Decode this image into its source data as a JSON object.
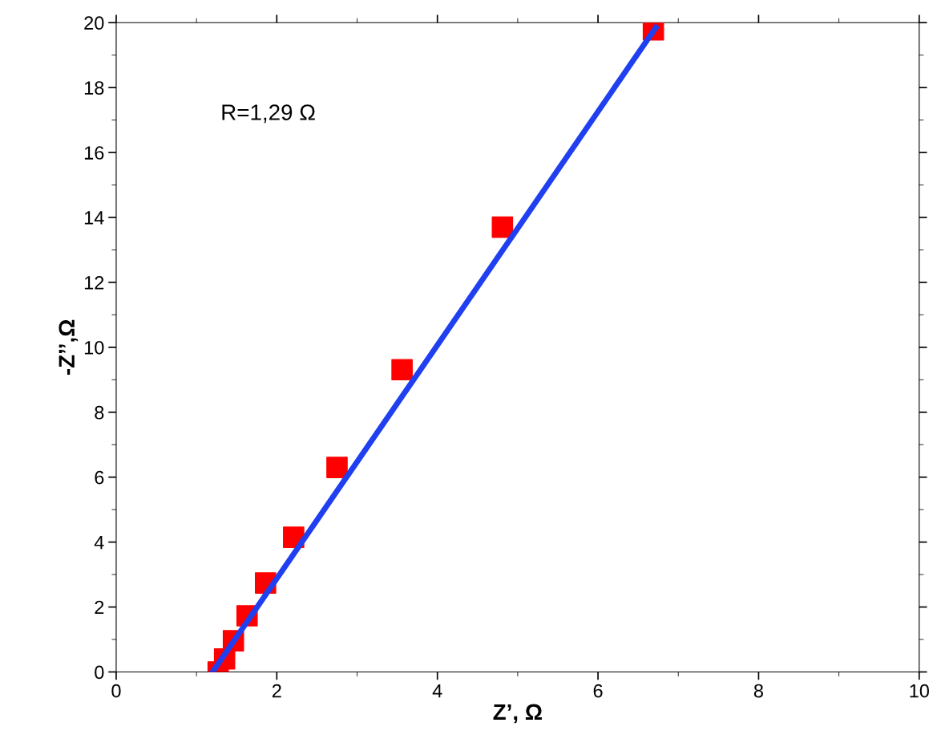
{
  "chart_data": {
    "type": "scatter",
    "xlabel": "Z’, Ω",
    "ylabel": "-Z’’,Ω",
    "xlim": [
      0,
      10
    ],
    "ylim": [
      0,
      20
    ],
    "xticks": [
      0,
      2,
      4,
      6,
      8,
      10
    ],
    "yticks": [
      0,
      2,
      4,
      6,
      8,
      10,
      12,
      14,
      16,
      18,
      20
    ],
    "annotations": [
      "R=1,29 Ω"
    ],
    "series": [
      {
        "type": "line",
        "color": "#1f3ff0",
        "x": [
          1.2,
          6.72
        ],
        "values": [
          0,
          19.85
        ]
      },
      {
        "color": "#ff0000",
        "marker": "square",
        "x": [
          1.27,
          1.35,
          1.46,
          1.63,
          1.86,
          2.21,
          2.75,
          3.56,
          4.81,
          6.69
        ],
        "values": [
          0,
          0.4,
          0.96,
          1.73,
          2.74,
          4.15,
          6.3,
          9.31,
          13.7,
          19.78
        ]
      }
    ],
    "grid": false,
    "legend": false
  }
}
